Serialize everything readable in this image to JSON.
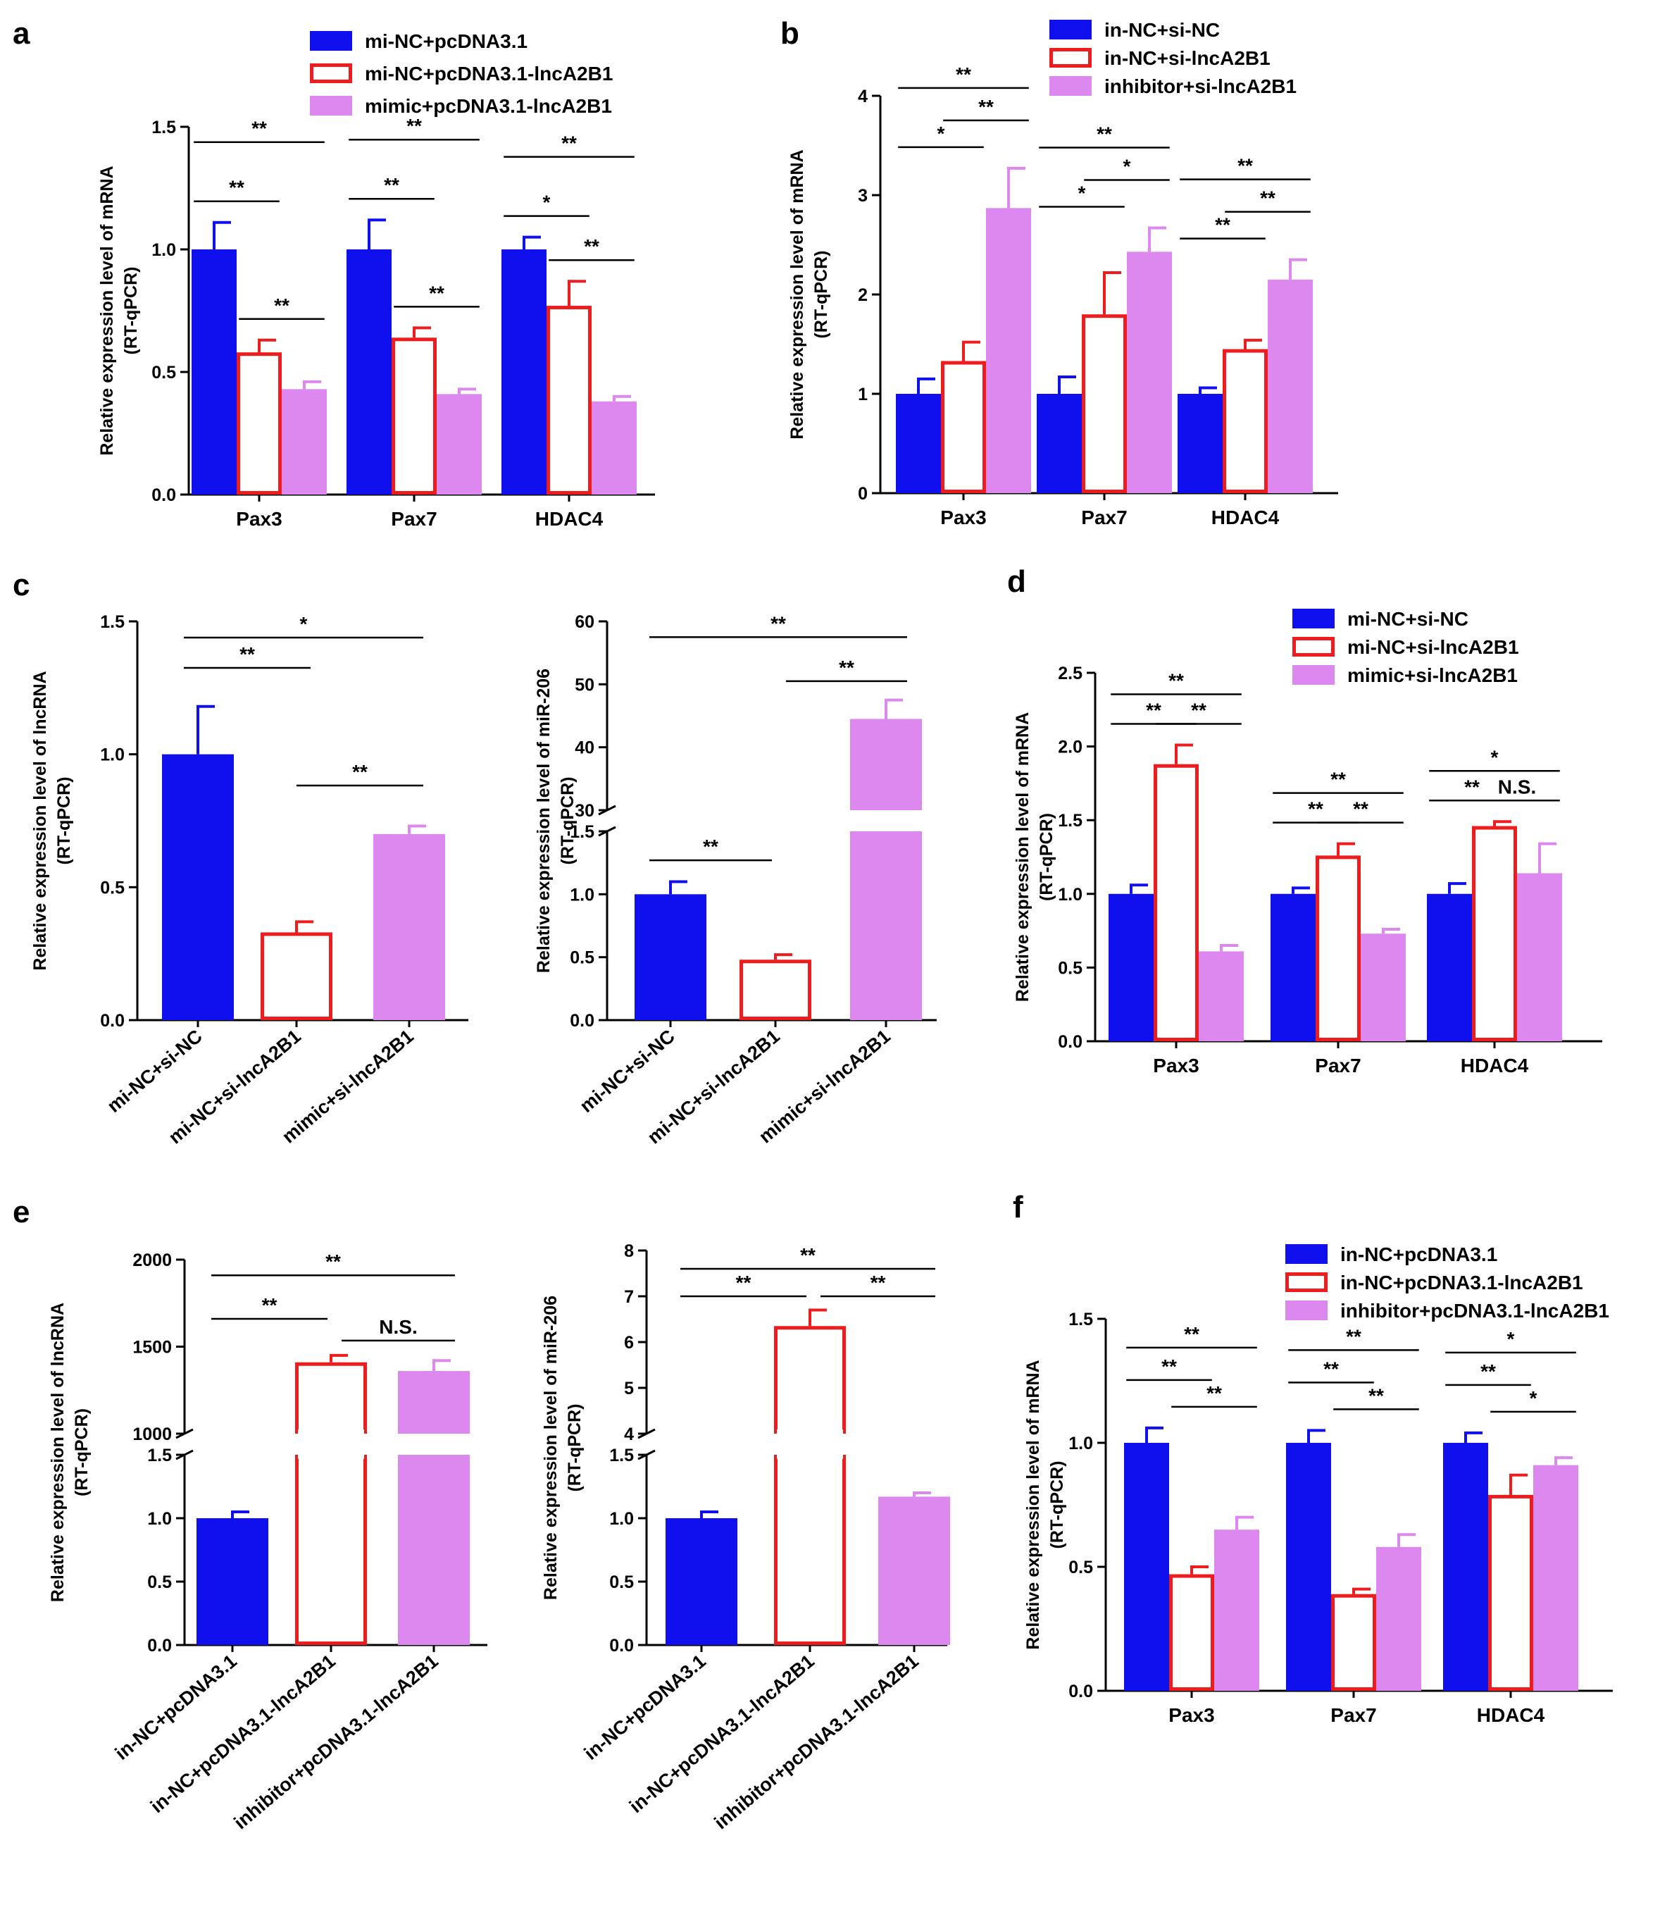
{
  "figure": {
    "colors": {
      "blue": "#1010ee",
      "red": "#ee1c1c",
      "pink": "#dd88ee",
      "black": "#000000"
    }
  },
  "chart_data": [
    {
      "id": "a",
      "panel_label": "a",
      "type": "bar",
      "ylabel_lines": [
        "Relative expression level of mRNA",
        "(RT-qPCR)"
      ],
      "ylim": [
        0,
        1.5
      ],
      "yticks": [
        {
          "v": 0,
          "label": "0.0"
        },
        {
          "v": 0.5,
          "label": "0.5"
        },
        {
          "v": 1.0,
          "label": "1.0"
        },
        {
          "v": 1.5,
          "label": "1.5"
        }
      ],
      "categories": [
        "Pax3",
        "Pax7",
        "HDAC4"
      ],
      "series": [
        {
          "name": "mi-NC+pcDNA3.1",
          "style": "blue",
          "values": [
            1.0,
            1.0,
            1.0
          ],
          "errors": [
            0.11,
            0.12,
            0.05
          ]
        },
        {
          "name": "mi-NC+pcDNA3.1-lncA2B1",
          "style": "red",
          "values": [
            0.58,
            0.64,
            0.77
          ],
          "errors": [
            0.05,
            0.04,
            0.1
          ]
        },
        {
          "name": "mimic+pcDNA3.1-lncA2B1",
          "style": "pink",
          "values": [
            0.43,
            0.41,
            0.38
          ],
          "errors": [
            0.03,
            0.02,
            0.02
          ]
        }
      ],
      "sig": [
        {
          "cat": 0,
          "from": 0,
          "to": 2,
          "label": "**",
          "level": 3
        },
        {
          "cat": 0,
          "from": 0,
          "to": 1,
          "label": "**",
          "level": 2
        },
        {
          "cat": 0,
          "from": 1,
          "to": 2,
          "label": "**",
          "level": 1
        },
        {
          "cat": 1,
          "from": 0,
          "to": 2,
          "label": "**",
          "level": 3
        },
        {
          "cat": 1,
          "from": 0,
          "to": 1,
          "label": "**",
          "level": 2
        },
        {
          "cat": 1,
          "from": 1,
          "to": 2,
          "label": "**",
          "level": 1
        },
        {
          "cat": 2,
          "from": 0,
          "to": 2,
          "label": "**",
          "level": 3
        },
        {
          "cat": 2,
          "from": 0,
          "to": 1,
          "label": "*",
          "level": 2
        },
        {
          "cat": 2,
          "from": 1,
          "to": 2,
          "label": "**",
          "level": 1
        }
      ]
    },
    {
      "id": "b",
      "panel_label": "b",
      "type": "bar",
      "ylabel_lines": [
        "Relative expression level of mRNA",
        "(RT-qPCR)"
      ],
      "ylim": [
        0,
        4
      ],
      "yticks": [
        {
          "v": 0,
          "label": "0"
        },
        {
          "v": 1,
          "label": "1"
        },
        {
          "v": 2,
          "label": "2"
        },
        {
          "v": 3,
          "label": "3"
        },
        {
          "v": 4,
          "label": "4"
        }
      ],
      "categories": [
        "Pax3",
        "Pax7",
        "HDAC4"
      ],
      "series": [
        {
          "name": "in-NC+si-NC",
          "style": "blue",
          "values": [
            1.0,
            1.0,
            1.0
          ],
          "errors": [
            0.15,
            0.17,
            0.06
          ]
        },
        {
          "name": "in-NC+si-lncA2B1",
          "style": "red",
          "values": [
            1.33,
            1.8,
            1.45
          ],
          "errors": [
            0.19,
            0.42,
            0.09
          ]
        },
        {
          "name": "inhibitor+si-lncA2B1",
          "style": "pink",
          "values": [
            2.87,
            2.43,
            2.15
          ],
          "errors": [
            0.4,
            0.24,
            0.2
          ]
        }
      ],
      "sig": [
        {
          "cat": 0,
          "from": 0,
          "to": 2,
          "label": "**",
          "level": 3
        },
        {
          "cat": 0,
          "from": 1,
          "to": 2,
          "label": "**",
          "level": 2
        },
        {
          "cat": 0,
          "from": 0,
          "to": 1,
          "label": "*",
          "level": 1
        },
        {
          "cat": 1,
          "from": 0,
          "to": 2,
          "label": "**",
          "level": 3
        },
        {
          "cat": 1,
          "from": 1,
          "to": 2,
          "label": "*",
          "level": 2
        },
        {
          "cat": 1,
          "from": 0,
          "to": 1,
          "label": "*",
          "level": 1
        },
        {
          "cat": 2,
          "from": 0,
          "to": 2,
          "label": "**",
          "level": 3
        },
        {
          "cat": 2,
          "from": 1,
          "to": 2,
          "label": "**",
          "level": 2
        },
        {
          "cat": 2,
          "from": 0,
          "to": 1,
          "label": "**",
          "level": 1
        }
      ]
    },
    {
      "id": "c1",
      "panel_label": "c",
      "type": "bar",
      "ylabel_lines": [
        "Relative expression level of lncRNA",
        "(RT-qPCR)"
      ],
      "ylim": [
        0,
        1.5
      ],
      "yticks": [
        {
          "v": 0,
          "label": "0.0"
        },
        {
          "v": 0.5,
          "label": "0.5"
        },
        {
          "v": 1.0,
          "label": "1.0"
        },
        {
          "v": 1.5,
          "label": "1.5"
        }
      ],
      "categories": [
        "mi-NC+si-NC",
        "mi-NC+si-lncA2B1",
        "mimic+si-lncA2B1"
      ],
      "bars": [
        {
          "style": "blue",
          "value": 1.0,
          "error": 0.18
        },
        {
          "style": "red",
          "value": 0.33,
          "error": 0.04
        },
        {
          "style": "pink",
          "value": 0.7,
          "error": 0.03
        }
      ],
      "sig": [
        {
          "from": 0,
          "to": 2,
          "label": "*",
          "level": 3
        },
        {
          "from": 0,
          "to": 1,
          "label": "**",
          "level": 2
        },
        {
          "from": 1,
          "to": 2,
          "label": "**",
          "level": 1
        }
      ]
    },
    {
      "id": "c2",
      "type": "bar",
      "broken_axis": true,
      "ylabel_lines": [
        "Relative expression level of miR-206",
        "(RT-qPCR)"
      ],
      "lower_ylim": [
        0,
        1.5
      ],
      "upper_ylim": [
        30,
        60
      ],
      "lower_yticks": [
        {
          "v": 0,
          "label": "0.0"
        },
        {
          "v": 0.5,
          "label": "0.5"
        },
        {
          "v": 1.0,
          "label": "1.0"
        },
        {
          "v": 1.5,
          "label": "1.5"
        }
      ],
      "upper_yticks": [
        {
          "v": 30,
          "label": "30"
        },
        {
          "v": 40,
          "label": "40"
        },
        {
          "v": 50,
          "label": "50"
        },
        {
          "v": 60,
          "label": "60"
        }
      ],
      "categories": [
        "mi-NC+si-NC",
        "mi-NC+si-lncA2B1",
        "mimic+si-lncA2B1"
      ],
      "bars": [
        {
          "style": "blue",
          "value": 1.0,
          "error": 0.1
        },
        {
          "style": "red",
          "value": 0.48,
          "error": 0.04
        },
        {
          "style": "pink",
          "value": 44.5,
          "error": 3.0
        }
      ],
      "sig": [
        {
          "from": 0,
          "to": 2,
          "label": "**",
          "axis": "upper",
          "y": 57.5
        },
        {
          "from": 1,
          "to": 2,
          "label": "**",
          "axis": "upper",
          "y": 50.5
        },
        {
          "from": 0,
          "to": 1,
          "label": "**",
          "axis": "lower",
          "y": 1.27
        }
      ]
    },
    {
      "id": "d",
      "panel_label": "d",
      "type": "bar",
      "ylabel_lines": [
        "Relative expression level of mRNA",
        "(RT-qPCR)"
      ],
      "ylim": [
        0,
        2.5
      ],
      "yticks": [
        {
          "v": 0,
          "label": "0.0"
        },
        {
          "v": 0.5,
          "label": "0.5"
        },
        {
          "v": 1.0,
          "label": "1.0"
        },
        {
          "v": 1.5,
          "label": "1.5"
        },
        {
          "v": 2.0,
          "label": "2.0"
        },
        {
          "v": 2.5,
          "label": "2.5"
        }
      ],
      "categories": [
        "Pax3",
        "Pax7",
        "HDAC4"
      ],
      "series": [
        {
          "name": "mi-NC+si-NC",
          "style": "blue",
          "values": [
            1.0,
            1.0,
            1.0
          ],
          "errors": [
            0.06,
            0.04,
            0.07
          ]
        },
        {
          "name": "mi-NC+si-lncA2B1",
          "style": "red",
          "values": [
            1.88,
            1.26,
            1.46
          ],
          "errors": [
            0.13,
            0.08,
            0.03
          ]
        },
        {
          "name": "mimic+si-lncA2B1",
          "style": "pink",
          "values": [
            0.61,
            0.73,
            1.14
          ],
          "errors": [
            0.04,
            0.03,
            0.2
          ]
        }
      ],
      "sig": [
        {
          "cat": 0,
          "from": 0,
          "to": 2,
          "label": "**",
          "level": 2
        },
        {
          "cat": 0,
          "from": 0,
          "to": 1,
          "label": "**",
          "level": 1
        },
        {
          "cat": 0,
          "from": 1,
          "to": 2,
          "label": "**",
          "level": 1
        },
        {
          "cat": 1,
          "from": 0,
          "to": 2,
          "label": "**",
          "level": 2
        },
        {
          "cat": 1,
          "from": 0,
          "to": 1,
          "label": "**",
          "level": 1
        },
        {
          "cat": 1,
          "from": 1,
          "to": 2,
          "label": "**",
          "level": 1
        },
        {
          "cat": 2,
          "from": 0,
          "to": 2,
          "label": "*",
          "level": 2
        },
        {
          "cat": 2,
          "from": 0,
          "to": 1,
          "label": "**",
          "level": 1
        },
        {
          "cat": 2,
          "from": 1,
          "to": 2,
          "label": "N.S.",
          "level": 1
        }
      ]
    },
    {
      "id": "e1",
      "panel_label": "e",
      "type": "bar",
      "broken_axis": true,
      "ylabel_lines": [
        "Relative expression level of lncRNA",
        "(RT-qPCR)"
      ],
      "lower_ylim": [
        0,
        1.5
      ],
      "upper_ylim": [
        1000,
        2000
      ],
      "lower_yticks": [
        {
          "v": 0,
          "label": "0.0"
        },
        {
          "v": 0.5,
          "label": "0.5"
        },
        {
          "v": 1.0,
          "label": "1.0"
        },
        {
          "v": 1.5,
          "label": "1.5"
        }
      ],
      "upper_yticks": [
        {
          "v": 1000,
          "label": "1000"
        },
        {
          "v": 1500,
          "label": "1500"
        },
        {
          "v": 2000,
          "label": "2000"
        }
      ],
      "categories": [
        "in-NC+pcDNA3.1",
        "in-NC+pcDNA3.1-lncA2B1",
        "inhibitor+pcDNA3.1-lncA2B1"
      ],
      "bars": [
        {
          "style": "blue",
          "value": 1.0,
          "error": 0.05
        },
        {
          "style": "red",
          "value": 1410,
          "error": 40
        },
        {
          "style": "pink",
          "value": 1360,
          "error": 60
        }
      ],
      "sig": [
        {
          "from": 0,
          "to": 2,
          "label": "**",
          "axis": "upper",
          "y": 1910
        },
        {
          "from": 0,
          "to": 1,
          "label": "**",
          "axis": "upper",
          "y": 1660
        },
        {
          "from": 1,
          "to": 2,
          "label": "N.S.",
          "axis": "upper",
          "y": 1535
        }
      ]
    },
    {
      "id": "e2",
      "type": "bar",
      "broken_axis": true,
      "ylabel_lines": [
        "Relative expression level of miR-206",
        "(RT-qPCR)"
      ],
      "lower_ylim": [
        0,
        1.5
      ],
      "upper_ylim": [
        4,
        8
      ],
      "lower_yticks": [
        {
          "v": 0,
          "label": "0.0"
        },
        {
          "v": 0.5,
          "label": "0.5"
        },
        {
          "v": 1.0,
          "label": "1.0"
        },
        {
          "v": 1.5,
          "label": "1.5"
        }
      ],
      "upper_yticks": [
        {
          "v": 4,
          "label": "4"
        },
        {
          "v": 5,
          "label": "5"
        },
        {
          "v": 6,
          "label": "6"
        },
        {
          "v": 7,
          "label": "7"
        },
        {
          "v": 8,
          "label": "8"
        }
      ],
      "categories": [
        "in-NC+pcDNA3.1",
        "in-NC+pcDNA3.1-lncA2B1",
        "inhibitor+pcDNA3.1-lncA2B1"
      ],
      "bars": [
        {
          "style": "blue",
          "value": 1.0,
          "error": 0.05
        },
        {
          "style": "red",
          "value": 6.35,
          "error": 0.35
        },
        {
          "style": "pink",
          "value": 1.17,
          "error": 0.03
        }
      ],
      "sig": [
        {
          "from": 0,
          "to": 2,
          "label": "**",
          "axis": "upper",
          "y": 7.6
        },
        {
          "from": 0,
          "to": 1,
          "label": "**",
          "axis": "upper",
          "y": 7.0
        },
        {
          "from": 1,
          "to": 2,
          "label": "**",
          "axis": "upper",
          "y": 7.0
        }
      ]
    },
    {
      "id": "f",
      "panel_label": "f",
      "type": "bar",
      "ylabel_lines": [
        "Relative expression level of mRNA",
        "(RT-qPCR)"
      ],
      "ylim": [
        0,
        1.5
      ],
      "yticks": [
        {
          "v": 0,
          "label": "0.0"
        },
        {
          "v": 0.5,
          "label": "0.5"
        },
        {
          "v": 1.0,
          "label": "1.0"
        },
        {
          "v": 1.5,
          "label": "1.5"
        }
      ],
      "categories": [
        "Pax3",
        "Pax7",
        "HDAC4"
      ],
      "series": [
        {
          "name": "in-NC+pcDNA3.1",
          "style": "blue",
          "values": [
            1.0,
            1.0,
            1.0
          ],
          "errors": [
            0.06,
            0.05,
            0.04
          ]
        },
        {
          "name": "in-NC+pcDNA3.1-lncA2B1",
          "style": "red",
          "values": [
            0.47,
            0.39,
            0.79
          ],
          "errors": [
            0.03,
            0.02,
            0.08
          ]
        },
        {
          "name": "inhibitor+pcDNA3.1-lncA2B1",
          "style": "pink",
          "values": [
            0.65,
            0.58,
            0.91
          ],
          "errors": [
            0.05,
            0.05,
            0.03
          ]
        }
      ],
      "sig": [
        {
          "cat": 0,
          "from": 0,
          "to": 2,
          "label": "**",
          "level": 3
        },
        {
          "cat": 0,
          "from": 0,
          "to": 1,
          "label": "**",
          "level": 2
        },
        {
          "cat": 0,
          "from": 1,
          "to": 2,
          "label": "**",
          "level": 1
        },
        {
          "cat": 1,
          "from": 0,
          "to": 2,
          "label": "**",
          "level": 3
        },
        {
          "cat": 1,
          "from": 0,
          "to": 1,
          "label": "**",
          "level": 2
        },
        {
          "cat": 1,
          "from": 1,
          "to": 2,
          "label": "**",
          "level": 1
        },
        {
          "cat": 2,
          "from": 0,
          "to": 2,
          "label": "*",
          "level": 3
        },
        {
          "cat": 2,
          "from": 0,
          "to": 1,
          "label": "**",
          "level": 2
        },
        {
          "cat": 2,
          "from": 1,
          "to": 2,
          "label": "*",
          "level": 1
        }
      ]
    }
  ]
}
